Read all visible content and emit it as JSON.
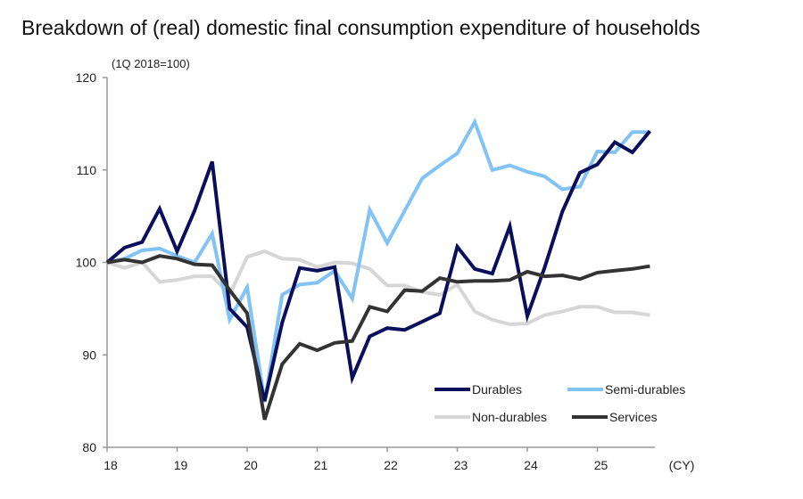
{
  "chart_data": {
    "type": "line",
    "title": "Breakdown of (real) domestic final consumption expenditure of households",
    "subtitle": "(1Q 2018=100)",
    "xlabel": "(CY)",
    "ylabel": "",
    "ylim": [
      80,
      120
    ],
    "yticks": [
      "80",
      "90",
      "100",
      "110",
      "120"
    ],
    "xticks": [
      "18",
      "19",
      "20",
      "21",
      "22",
      "23",
      "24",
      "25"
    ],
    "x": [
      "2018Q1",
      "2018Q2",
      "2018Q3",
      "2018Q4",
      "2019Q1",
      "2019Q2",
      "2019Q3",
      "2019Q4",
      "2020Q1",
      "2020Q2",
      "2020Q3",
      "2020Q4",
      "2021Q1",
      "2021Q2",
      "2021Q3",
      "2021Q4",
      "2022Q1",
      "2022Q2",
      "2022Q3",
      "2022Q4",
      "2023Q1",
      "2023Q2",
      "2023Q3",
      "2023Q4",
      "2024Q1",
      "2024Q2",
      "2024Q3",
      "2024Q4",
      "2025Q1",
      "2025Q2",
      "2025Q3",
      "2025Q4"
    ],
    "grid": false,
    "legend_position": "bottom-right",
    "series": [
      {
        "name": "Durables",
        "color": "#0a0f5c",
        "values": [
          100,
          101.6,
          102.2,
          105.8,
          101.2,
          105.6,
          110.9,
          95.0,
          93.0,
          85.0,
          93.5,
          99.4,
          99.1,
          99.5,
          87.5,
          92.0,
          92.9,
          92.7,
          93.6,
          94.5,
          101.7,
          99.3,
          98.8,
          103.9,
          94.2,
          99.5,
          105.5,
          109.7,
          110.6,
          113.0,
          111.9,
          114.2
        ]
      },
      {
        "name": "Semi-durables",
        "color": "#82c3f5",
        "values": [
          100,
          100.4,
          101.3,
          101.5,
          100.7,
          100.0,
          103.1,
          93.8,
          97.3,
          84.9,
          96.5,
          97.6,
          97.8,
          99.1,
          96.1,
          105.7,
          102.1,
          105.6,
          109.1,
          110.5,
          111.8,
          115.2,
          110.0,
          110.5,
          109.8,
          109.3,
          107.9,
          108.2,
          112.0,
          111.9,
          114.1,
          114.1
        ]
      },
      {
        "name": "Non-durables",
        "color": "#d6d6d6",
        "values": [
          100,
          99.4,
          100.0,
          97.9,
          98.1,
          98.5,
          98.5,
          96.5,
          100.6,
          101.2,
          100.4,
          100.3,
          99.5,
          100.0,
          99.9,
          99.3,
          97.5,
          97.5,
          96.8,
          96.5,
          97.6,
          94.7,
          93.8,
          93.3,
          93.4,
          94.3,
          94.7,
          95.2,
          95.2,
          94.6,
          94.6,
          94.3
        ]
      },
      {
        "name": "Services",
        "color": "#333333",
        "values": [
          100,
          100.3,
          100.0,
          100.7,
          100.4,
          99.8,
          99.7,
          97.0,
          94.5,
          83.0,
          89.0,
          91.2,
          90.5,
          91.3,
          91.5,
          95.2,
          94.7,
          97.0,
          96.9,
          98.3,
          97.9,
          98.0,
          98.0,
          98.1,
          99.0,
          98.5,
          98.6,
          98.2,
          98.9,
          99.1,
          99.3,
          99.6
        ]
      }
    ]
  }
}
